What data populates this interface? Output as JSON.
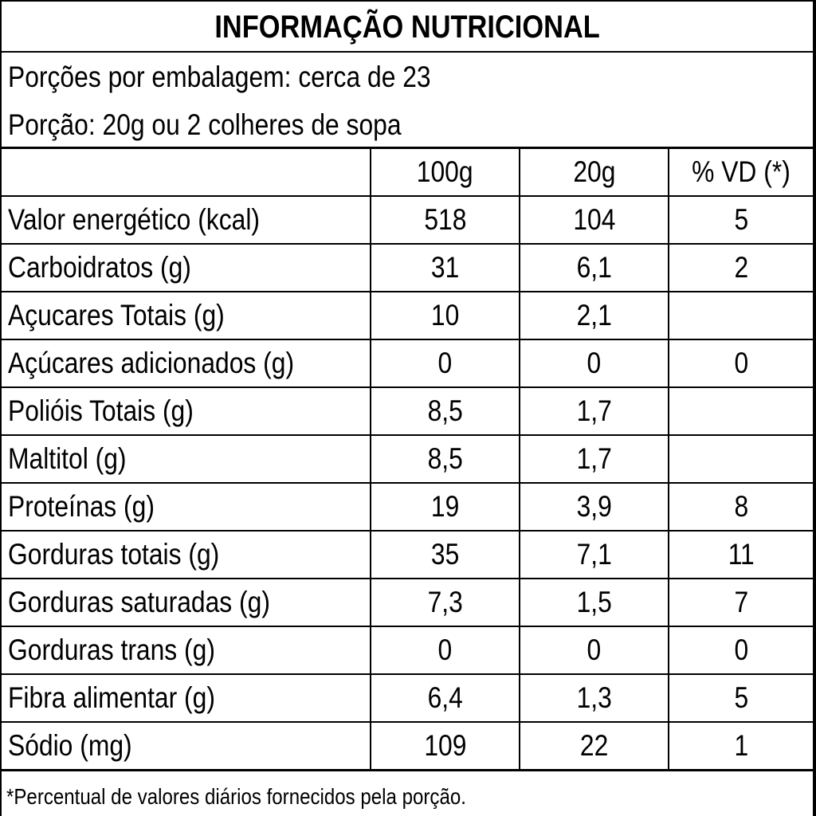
{
  "label": {
    "title": "INFORMAÇÃO NUTRICIONAL",
    "servings_per_package": "Porções por embalagem: cerca de 23",
    "serving_size": "Porção: 20g ou 2 colheres de sopa",
    "footnote": "*Percentual de valores diários fornecidos pela porção."
  },
  "table": {
    "headers": [
      "",
      "100g",
      "20g",
      "% VD (*)"
    ],
    "rows": [
      {
        "nutrient": "Valor energético (kcal)",
        "per_100g": "518",
        "per_20g": "104",
        "vd": "5",
        "indent": false
      },
      {
        "nutrient": "Carboidratos (g)",
        "per_100g": "31",
        "per_20g": "6,1",
        "vd": "2",
        "indent": false
      },
      {
        "nutrient": "Açucares Totais (g)",
        "per_100g": "10",
        "per_20g": "2,1",
        "vd": "",
        "indent": false
      },
      {
        "nutrient": "Açúcares adicionados (g)",
        "per_100g": "0",
        "per_20g": "0",
        "vd": "0",
        "indent": false
      },
      {
        "nutrient": "Polióis Totais (g)",
        "per_100g": "8,5",
        "per_20g": "1,7",
        "vd": "",
        "indent": false
      },
      {
        "nutrient": "Maltitol (g)",
        "per_100g": "8,5",
        "per_20g": "1,7",
        "vd": "",
        "indent": false
      },
      {
        "nutrient": "Proteínas (g)",
        "per_100g": "19",
        "per_20g": "3,9",
        "vd": "8",
        "indent": false
      },
      {
        "nutrient": "Gorduras totais (g)",
        "per_100g": "35",
        "per_20g": "7,1",
        "vd": "11",
        "indent": false
      },
      {
        "nutrient": "Gorduras saturadas (g)",
        "per_100g": "7,3",
        "per_20g": "1,5",
        "vd": "7",
        "indent": true
      },
      {
        "nutrient": "Gorduras trans (g)",
        "per_100g": "0",
        "per_20g": "0",
        "vd": "0",
        "indent": true
      },
      {
        "nutrient": "Fibra alimentar (g)",
        "per_100g": "6,4",
        "per_20g": "1,3",
        "vd": "5",
        "indent": false
      },
      {
        "nutrient": "Sódio (mg)",
        "per_100g": "109",
        "per_20g": "22",
        "vd": "1",
        "indent": false
      }
    ]
  }
}
